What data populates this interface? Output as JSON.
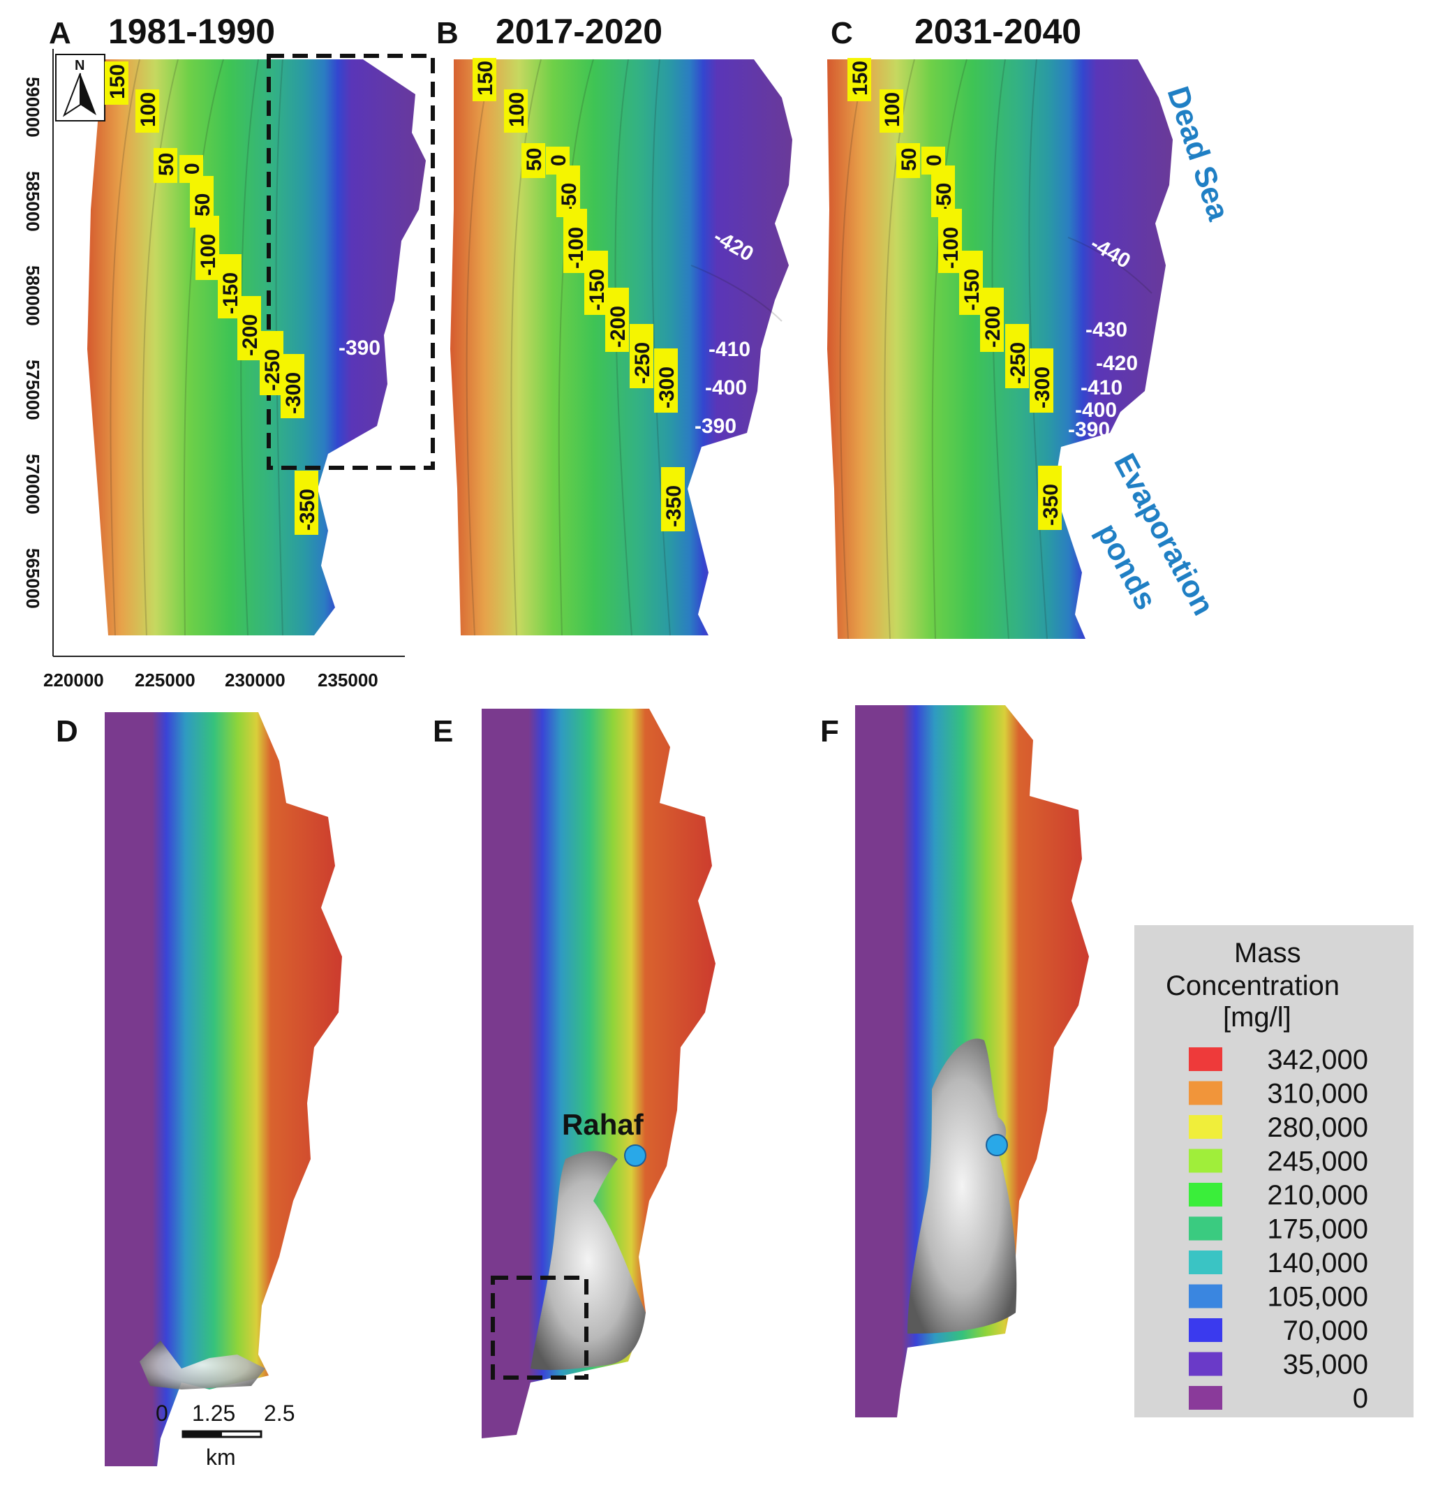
{
  "panels_top": [
    {
      "letter": "A",
      "period": "1981-1990"
    },
    {
      "letter": "B",
      "period": "2017-2020"
    },
    {
      "letter": "C",
      "period": "2031-2040"
    }
  ],
  "panels_bottom": [
    {
      "letter": "D"
    },
    {
      "letter": "E"
    },
    {
      "letter": "F"
    }
  ],
  "north_arrow": {
    "label": "N",
    "icon": "north-arrow-icon"
  },
  "axes": {
    "y_ticks": [
      "590000",
      "585000",
      "580000",
      "575000",
      "570000",
      "565000"
    ],
    "x_ticks": [
      "220000",
      "225000",
      "230000",
      "235000"
    ]
  },
  "contour_tags": [
    "150",
    "100",
    "50",
    "0",
    "-50",
    "-100",
    "-150",
    "-200",
    "-250",
    "-300",
    "-350"
  ],
  "contour_labels": {
    "A": [
      "-390"
    ],
    "B": [
      "-420",
      "-410",
      "-400",
      "-390"
    ],
    "C": [
      "-440",
      "-430",
      "-420",
      "-410",
      "-400",
      "-390"
    ]
  },
  "annotations": {
    "dead_sea": "Dead Sea",
    "evaporation": "Evaporation",
    "ponds": "ponds"
  },
  "site": {
    "name": "Rahaf",
    "marker_color": "#29a8e8"
  },
  "scale_bar": {
    "ticks": [
      "0",
      "1.25",
      "2.5"
    ],
    "unit": "km"
  },
  "legend": {
    "title_lines": [
      "Mass",
      "Concentration",
      "[mg/l]"
    ],
    "items": [
      {
        "label": "342,000",
        "color": "#ee3a3a"
      },
      {
        "label": "310,000",
        "color": "#f1953a"
      },
      {
        "label": "280,000",
        "color": "#f0ee3a"
      },
      {
        "label": "245,000",
        "color": "#a0ee3a"
      },
      {
        "label": "210,000",
        "color": "#3aee3a"
      },
      {
        "label": "175,000",
        "color": "#3acb80"
      },
      {
        "label": "140,000",
        "color": "#3ac4c4"
      },
      {
        "label": "105,000",
        "color": "#3a86e0"
      },
      {
        "label": "70,000",
        "color": "#3a3aee"
      },
      {
        "label": "35,000",
        "color": "#6a3ac8"
      },
      {
        "label": "0",
        "color": "#8a3a9a"
      }
    ]
  }
}
